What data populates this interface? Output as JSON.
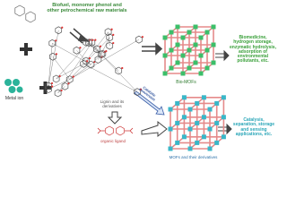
{
  "labels": {
    "raw_materials": "Biofuel, monomer phenol and other petrochemical raw materials",
    "metal_ion": "Metal ion",
    "lignin": "Lignin and its derivatives",
    "organic_ligand": "organic ligand",
    "bio_mofs": "Bio-MOFs",
    "mofs": "MOFs and their derivatives",
    "conversion": "Catalytic conversion",
    "bio_applications": "Biomedicine, hydrogen storage, enzymatic hydrolysis, adsorption of environmental pollutants, etc.",
    "mof_applications": "Catalysis, separation, storage and sensing applications, etc."
  }
}
